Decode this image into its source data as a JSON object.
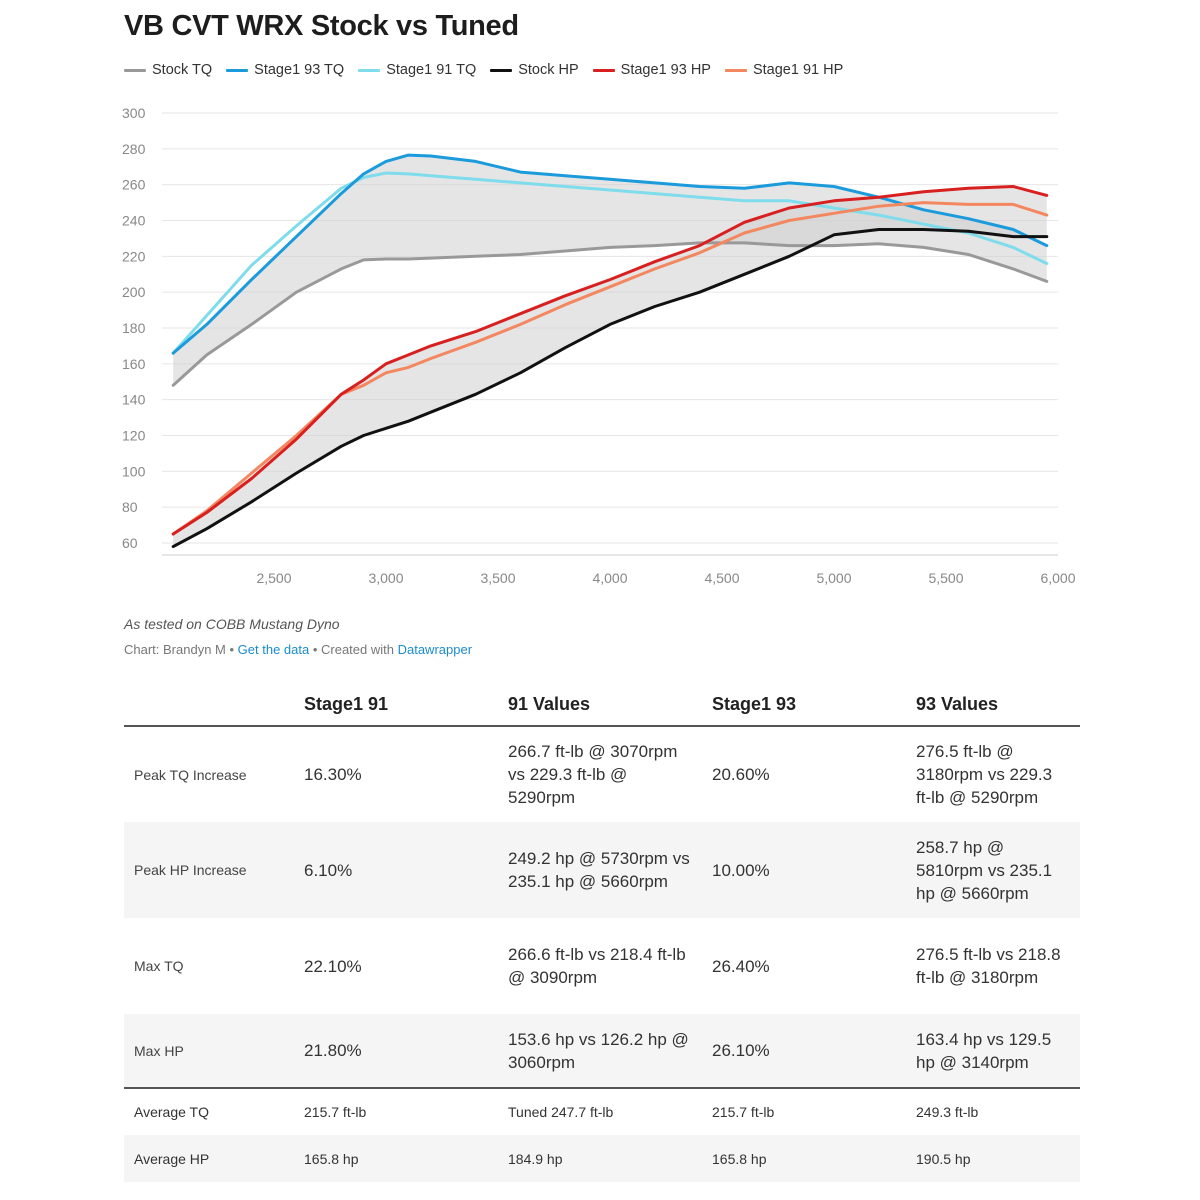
{
  "title": "VB CVT WRX Stock vs Tuned",
  "chart_data": {
    "type": "line",
    "title": "VB CVT WRX Stock vs Tuned",
    "xlabel": "",
    "ylabel": "",
    "xlim": [
      2000,
      6000
    ],
    "ylim": [
      50,
      300
    ],
    "x_ticks": [
      2500,
      3000,
      3500,
      4000,
      4500,
      5000,
      5500,
      6000
    ],
    "x_tick_labels": [
      "2,500",
      "3,000",
      "3,500",
      "4,000",
      "4,500",
      "5,000",
      "5,500",
      "6,000"
    ],
    "y_ticks": [
      60,
      80,
      100,
      120,
      140,
      160,
      180,
      200,
      220,
      240,
      260,
      280,
      300
    ],
    "y_tick_labels": [
      "60",
      "80",
      "100",
      "120",
      "140",
      "160",
      "180",
      "200",
      "220",
      "240",
      "260",
      "280",
      "300"
    ],
    "grid": true,
    "legend_position": "top",
    "x": [
      2050,
      2200,
      2400,
      2600,
      2800,
      2900,
      3000,
      3100,
      3200,
      3400,
      3600,
      3800,
      4000,
      4200,
      4400,
      4600,
      4800,
      5000,
      5200,
      5400,
      5600,
      5800,
      5950
    ],
    "series": [
      {
        "name": "Stock TQ",
        "color": "#999999",
        "values": [
          148,
          165,
          182,
          200,
          213,
          218,
          218.5,
          218.5,
          219,
          220,
          221,
          223,
          225,
          226,
          227.5,
          227.5,
          226,
          226,
          227,
          225,
          221,
          213,
          206
        ]
      },
      {
        "name": "Stage1 93 TQ",
        "color": "#1b9bdc",
        "values": [
          166,
          182,
          207,
          231,
          255,
          266,
          273,
          276.5,
          276,
          273,
          267,
          265,
          263,
          261,
          259,
          258,
          261,
          259,
          253,
          246,
          241,
          235,
          226
        ]
      },
      {
        "name": "Stage1 91 TQ",
        "color": "#7fdcec",
        "values": [
          166,
          187,
          215,
          237,
          258,
          264,
          266.5,
          266,
          265,
          263,
          261,
          259,
          257,
          255,
          253,
          251,
          251,
          247,
          243,
          238,
          233,
          225,
          216
        ]
      },
      {
        "name": "Stock HP",
        "color": "#111111",
        "values": [
          58,
          68,
          83,
          99,
          114,
          120,
          124,
          128,
          133,
          143,
          155,
          169,
          182,
          192,
          200,
          210,
          220,
          232,
          235,
          235,
          234,
          231,
          231
        ]
      },
      {
        "name": "Stage1 93 HP",
        "color": "#d7201f",
        "values": [
          65,
          77,
          96,
          118,
          143,
          151,
          160,
          165,
          170,
          178,
          188,
          198,
          207,
          217,
          226,
          239,
          247,
          251,
          253,
          256,
          258,
          259,
          254
        ]
      },
      {
        "name": "Stage1 91 HP",
        "color": "#f3875f",
        "values": [
          65,
          78,
          99,
          120,
          143,
          148,
          155,
          158,
          163,
          172,
          182,
          193,
          203,
          213,
          222,
          233,
          240,
          244,
          248,
          250,
          249,
          249,
          243
        ]
      }
    ],
    "bands": [
      {
        "lower": "Stock TQ",
        "upper": "Stage1 93 TQ",
        "color": "#cfcfcf"
      },
      {
        "lower": "Stock HP",
        "upper": "Stage1 93 HP",
        "color": "#cfcfcf"
      }
    ]
  },
  "caption": "As tested on COBB Mustang Dyno",
  "notes": {
    "prefix": "Chart: Brandyn M • ",
    "get_data": "Get the data",
    "middle": " • Created with ",
    "datawrapper": "Datawrapper"
  },
  "table": {
    "headers": [
      "",
      "Stage1 91",
      "91 Values",
      "Stage1 93",
      "93 Values"
    ],
    "rows": [
      {
        "label": "Peak TQ Increase",
        "s91": "16.30%",
        "v91": "266.7 ft-lb @ 3070rpm vs 229.3 ft-lb @ 5290rpm",
        "s93": "20.60%",
        "v93": "276.5 ft-lb @ 3180rpm vs 229.3 ft-lb @ 5290rpm"
      },
      {
        "label": "Peak HP Increase",
        "s91": "6.10%",
        "v91": "249.2 hp @ 5730rpm vs 235.1 hp @ 5660rpm",
        "s93": "10.00%",
        "v93": "258.7 hp @ 5810rpm vs 235.1 hp @ 5660rpm"
      },
      {
        "label": "Max TQ",
        "s91": "22.10%",
        "v91": "266.6 ft-lb vs 218.4 ft-lb @ 3090rpm",
        "s93": "26.40%",
        "v93": "276.5 ft-lb vs 218.8 ft-lb @ 3180rpm"
      },
      {
        "label": "Max HP",
        "s91": "21.80%",
        "v91": "153.6 hp vs 126.2 hp @ 3060rpm",
        "s93": "26.10%",
        "v93": "163.4 hp vs 129.5 hp @ 3140rpm"
      },
      {
        "label": "Average TQ",
        "s91": "215.7 ft-lb",
        "v91": "Tuned 247.7 ft-lb",
        "s93": "215.7 ft-lb",
        "v93": "249.3 ft-lb"
      },
      {
        "label": "Average HP",
        "s91": "165.8 hp",
        "v91": "184.9 hp",
        "s93": "165.8 hp",
        "v93": "190.5 hp"
      }
    ]
  }
}
